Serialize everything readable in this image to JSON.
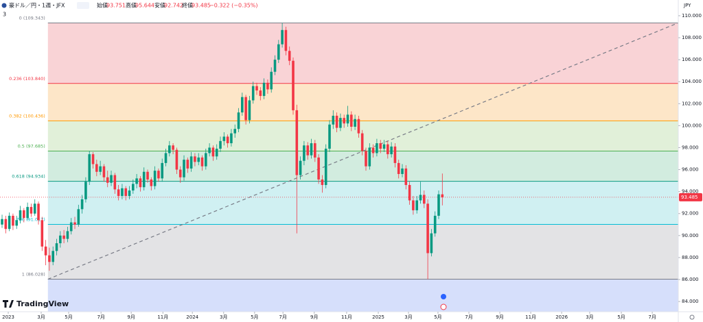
{
  "header": {
    "symbol": "豪ドル／円・1週・JFX",
    "open_label": "始値",
    "open": "93.751",
    "high_label": "高値",
    "high": "95.644",
    "low_label": "安値",
    "low": "92.742",
    "close_label": "終値",
    "close": "93.485",
    "change": "−0.322 (−0.35%)",
    "interval_badge": "3"
  },
  "logo": "TradingView",
  "chart_data": {
    "type": "candlestick",
    "currency": "JPY",
    "up_color": "#089981",
    "down_color": "#f23645",
    "xlim": [
      -0.57,
      185.85
    ],
    "ylim": [
      83.07,
      111.43
    ],
    "yticks": [
      {
        "value": 84,
        "label": "84.000"
      },
      {
        "value": 86,
        "label": "86.000"
      },
      {
        "value": 88,
        "label": "88.000"
      },
      {
        "value": 90,
        "label": "90.000"
      },
      {
        "value": 92,
        "label": "92.000"
      },
      {
        "value": 94,
        "label": "94.000"
      },
      {
        "value": 96,
        "label": "96.000"
      },
      {
        "value": 98,
        "label": "98.000"
      },
      {
        "value": 100,
        "label": "100.000"
      },
      {
        "value": 102,
        "label": "102.000"
      },
      {
        "value": 104,
        "label": "104.000"
      },
      {
        "value": 106,
        "label": "106.000"
      },
      {
        "value": 108,
        "label": "108.000"
      },
      {
        "value": 110,
        "label": "110.000"
      }
    ],
    "xticks": [
      {
        "value": 1.7,
        "label": "2023"
      },
      {
        "value": 10.75,
        "label": "3月"
      },
      {
        "value": 18.3,
        "label": "5月"
      },
      {
        "value": 27.2,
        "label": "7月"
      },
      {
        "value": 35.5,
        "label": "9月"
      },
      {
        "value": 44.2,
        "label": "11月"
      },
      {
        "value": 52.3,
        "label": "2024"
      },
      {
        "value": 60.9,
        "label": "3月"
      },
      {
        "value": 69.4,
        "label": "5月"
      },
      {
        "value": 77.2,
        "label": "7月"
      },
      {
        "value": 85.8,
        "label": "9月"
      },
      {
        "value": 94.7,
        "label": "11月"
      },
      {
        "value": 103.4,
        "label": "2025"
      },
      {
        "value": 111.7,
        "label": "3月"
      },
      {
        "value": 119.8,
        "label": "5月"
      },
      {
        "value": 128.3,
        "label": "7月"
      },
      {
        "value": 136.8,
        "label": "9月"
      },
      {
        "value": 145.3,
        "label": "11月"
      },
      {
        "value": 153.8,
        "label": "2026"
      },
      {
        "value": 161.5,
        "label": "3月"
      },
      {
        "value": 170.2,
        "label": "5月"
      },
      {
        "value": 178.7,
        "label": "7月"
      }
    ],
    "last_price": {
      "value": 93.485,
      "label": "93.485",
      "color": "#f23645"
    },
    "fib_start": 12.6,
    "fib_levels": [
      {
        "label": "0 (109.343)",
        "price": 109.343,
        "color": "#787b86"
      },
      {
        "label": "0.236 (103.840)",
        "price": 103.84,
        "color": "#f23645"
      },
      {
        "label": "0.382 (100.436)",
        "price": 100.436,
        "color": "#ff9800"
      },
      {
        "label": "0.5 (97.685)",
        "price": 97.685,
        "color": "#4caf50"
      },
      {
        "label": "0.618 (94.934)",
        "price": 94.934,
        "color": "#089981"
      },
      {
        "label": "0.786 (91.017)",
        "price": 91.017,
        "color": "#00bcd4"
      },
      {
        "label": "1 (86.028)",
        "price": 86.028,
        "color": "#787b86"
      }
    ],
    "band_colors": [
      "#f9d3d6",
      "#fde6c8",
      "#e1f0d9",
      "#d2ecdf",
      "#d0f0f2",
      "#e3e3e5",
      "#d6dffb"
    ],
    "trendline": {
      "x": [
        12.6,
        185.8
      ],
      "y": [
        86.028,
        109.343
      ],
      "color": "#787b86"
    },
    "candles": [
      [
        91.0,
        91.9,
        90.7,
        91.5
      ],
      [
        91.5,
        91.8,
        90.2,
        90.6
      ],
      [
        90.6,
        92.1,
        90.4,
        91.8
      ],
      [
        91.8,
        92.0,
        90.5,
        90.9
      ],
      [
        90.9,
        91.8,
        90.6,
        91.4
      ],
      [
        91.4,
        92.7,
        91.1,
        92.3
      ],
      [
        92.3,
        92.5,
        91.2,
        91.6
      ],
      [
        91.6,
        93.0,
        91.4,
        92.6
      ],
      [
        92.6,
        92.9,
        91.7,
        92.0
      ],
      [
        92.0,
        93.3,
        91.8,
        92.9
      ],
      [
        92.9,
        93.1,
        91.0,
        91.4
      ],
      [
        91.4,
        91.7,
        88.6,
        89.0
      ],
      [
        89.0,
        89.6,
        87.3,
        88.2
      ],
      [
        88.2,
        88.9,
        86.8,
        87.6
      ],
      [
        87.6,
        89.0,
        87.3,
        88.6
      ],
      [
        88.6,
        89.7,
        88.2,
        89.3
      ],
      [
        89.3,
        90.4,
        88.9,
        90.0
      ],
      [
        90.0,
        90.5,
        89.3,
        89.7
      ],
      [
        89.7,
        90.8,
        89.4,
        90.4
      ],
      [
        90.4,
        91.6,
        90.1,
        91.2
      ],
      [
        91.2,
        91.7,
        90.6,
        91.0
      ],
      [
        91.0,
        92.8,
        90.8,
        92.4
      ],
      [
        92.4,
        93.7,
        92.0,
        93.3
      ],
      [
        93.3,
        95.3,
        93.0,
        94.9
      ],
      [
        94.9,
        97.7,
        94.6,
        97.4
      ],
      [
        97.4,
        97.6,
        96.1,
        96.5
      ],
      [
        96.5,
        96.9,
        95.4,
        95.8
      ],
      [
        95.8,
        96.8,
        95.5,
        96.3
      ],
      [
        96.3,
        96.5,
        94.9,
        95.3
      ],
      [
        95.3,
        95.9,
        94.4,
        94.8
      ],
      [
        94.8,
        95.9,
        94.5,
        95.5
      ],
      [
        95.5,
        95.7,
        93.8,
        94.2
      ],
      [
        94.2,
        94.6,
        93.2,
        93.6
      ],
      [
        93.6,
        94.7,
        93.3,
        94.3
      ],
      [
        94.3,
        94.5,
        93.2,
        93.6
      ],
      [
        93.6,
        94.5,
        93.3,
        94.1
      ],
      [
        94.1,
        95.1,
        93.8,
        94.7
      ],
      [
        94.7,
        95.6,
        94.3,
        95.2
      ],
      [
        95.2,
        95.4,
        94.0,
        94.4
      ],
      [
        94.4,
        96.2,
        94.1,
        95.8
      ],
      [
        95.8,
        96.0,
        94.8,
        95.1
      ],
      [
        95.1,
        95.3,
        94.1,
        94.5
      ],
      [
        94.5,
        96.3,
        94.2,
        95.9
      ],
      [
        95.9,
        96.1,
        94.9,
        95.2
      ],
      [
        95.2,
        97.0,
        94.9,
        96.6
      ],
      [
        96.6,
        97.9,
        96.3,
        97.5
      ],
      [
        97.5,
        98.6,
        97.2,
        98.2
      ],
      [
        98.2,
        98.4,
        97.4,
        97.8
      ],
      [
        97.8,
        98.0,
        95.6,
        96.0
      ],
      [
        96.0,
        96.3,
        94.8,
        95.3
      ],
      [
        95.3,
        97.3,
        95.0,
        96.9
      ],
      [
        96.9,
        97.1,
        95.7,
        96.1
      ],
      [
        96.1,
        97.6,
        95.8,
        97.2
      ],
      [
        97.2,
        97.5,
        96.3,
        96.7
      ],
      [
        96.7,
        97.5,
        96.4,
        97.1
      ],
      [
        97.1,
        97.3,
        95.9,
        96.3
      ],
      [
        96.3,
        97.9,
        96.0,
        97.5
      ],
      [
        97.5,
        98.4,
        97.2,
        98.0
      ],
      [
        98.0,
        98.2,
        96.8,
        97.2
      ],
      [
        97.2,
        98.3,
        96.9,
        97.9
      ],
      [
        97.9,
        99.0,
        97.6,
        98.6
      ],
      [
        98.6,
        99.4,
        98.2,
        99.0
      ],
      [
        99.0,
        99.2,
        98.0,
        98.4
      ],
      [
        98.4,
        99.7,
        98.1,
        99.3
      ],
      [
        99.3,
        100.1,
        98.9,
        99.7
      ],
      [
        99.7,
        101.6,
        99.4,
        101.2
      ],
      [
        101.2,
        103.0,
        100.9,
        102.6
      ],
      [
        102.6,
        102.8,
        100.1,
        100.5
      ],
      [
        100.5,
        102.7,
        100.2,
        102.3
      ],
      [
        102.3,
        104.0,
        102.0,
        103.6
      ],
      [
        103.6,
        103.9,
        102.8,
        103.2
      ],
      [
        103.2,
        103.5,
        102.3,
        102.7
      ],
      [
        102.7,
        104.3,
        102.4,
        103.9
      ],
      [
        103.9,
        104.2,
        102.9,
        103.3
      ],
      [
        103.3,
        105.3,
        103.0,
        104.9
      ],
      [
        104.9,
        106.4,
        104.6,
        106.0
      ],
      [
        106.0,
        107.8,
        105.7,
        107.4
      ],
      [
        107.4,
        109.343,
        107.1,
        108.7
      ],
      [
        108.7,
        109.0,
        106.4,
        106.8
      ],
      [
        106.8,
        107.2,
        105.5,
        105.9
      ],
      [
        105.9,
        106.2,
        101.0,
        101.4
      ],
      [
        101.4,
        101.9,
        90.2,
        95.5
      ],
      [
        95.5,
        97.2,
        95.1,
        96.8
      ],
      [
        96.8,
        98.6,
        96.4,
        98.2
      ],
      [
        98.2,
        98.5,
        96.9,
        97.3
      ],
      [
        97.3,
        98.8,
        97.0,
        98.4
      ],
      [
        98.4,
        98.7,
        96.7,
        97.1
      ],
      [
        97.1,
        97.4,
        94.7,
        95.1
      ],
      [
        95.1,
        95.5,
        93.9,
        94.6
      ],
      [
        94.6,
        98.3,
        94.3,
        97.9
      ],
      [
        97.9,
        100.5,
        97.6,
        100.1
      ],
      [
        100.1,
        101.4,
        99.7,
        100.9
      ],
      [
        100.9,
        101.2,
        99.4,
        99.8
      ],
      [
        99.8,
        101.1,
        99.5,
        100.7
      ],
      [
        100.7,
        101.0,
        99.8,
        100.2
      ],
      [
        100.2,
        101.8,
        99.9,
        101.0
      ],
      [
        101.0,
        101.3,
        99.5,
        99.9
      ],
      [
        99.9,
        101.0,
        99.6,
        100.6
      ],
      [
        100.6,
        100.9,
        98.9,
        99.3
      ],
      [
        99.3,
        99.6,
        97.3,
        97.7
      ],
      [
        97.7,
        98.0,
        95.9,
        96.3
      ],
      [
        96.3,
        98.4,
        96.0,
        98.0
      ],
      [
        98.0,
        98.3,
        97.1,
        97.5
      ],
      [
        97.5,
        98.8,
        97.2,
        98.4
      ],
      [
        98.4,
        98.7,
        97.5,
        97.9
      ],
      [
        97.9,
        98.7,
        97.6,
        98.3
      ],
      [
        98.3,
        98.6,
        97.0,
        97.4
      ],
      [
        97.4,
        98.5,
        97.1,
        98.1
      ],
      [
        98.1,
        98.4,
        96.2,
        96.6
      ],
      [
        96.6,
        96.9,
        95.2,
        95.6
      ],
      [
        95.6,
        96.5,
        95.3,
        96.1
      ],
      [
        96.1,
        96.4,
        94.2,
        94.6
      ],
      [
        94.6,
        94.9,
        92.8,
        93.2
      ],
      [
        93.2,
        93.6,
        91.9,
        92.3
      ],
      [
        92.3,
        93.6,
        92.0,
        93.2
      ],
      [
        93.2,
        94.9,
        92.9,
        93.7
      ],
      [
        93.7,
        94.1,
        92.5,
        92.9
      ],
      [
        92.9,
        93.3,
        86.028,
        88.4
      ],
      [
        88.4,
        90.6,
        88.1,
        90.2
      ],
      [
        90.2,
        92.2,
        89.9,
        91.8
      ],
      [
        91.8,
        94.1,
        91.5,
        93.751
      ],
      [
        93.751,
        95.644,
        92.742,
        93.485
      ]
    ]
  }
}
